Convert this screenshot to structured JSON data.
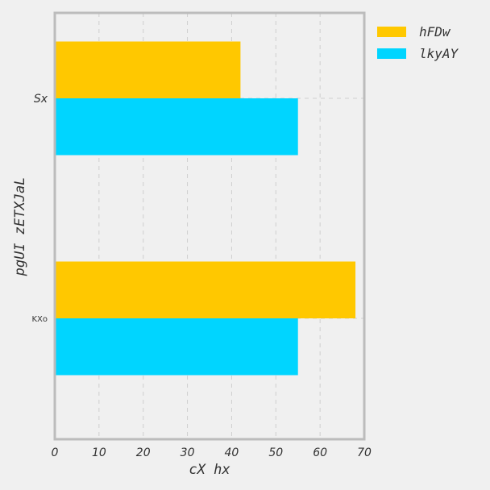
{
  "chart_data": {
    "type": "bar",
    "orientation": "horizontal",
    "categories": [
      "Sx",
      "KXo"
    ],
    "series": [
      {
        "name": "hFDw",
        "values": [
          42,
          68
        ],
        "color": "#ffc800"
      },
      {
        "name": "lkyAY",
        "values": [
          55,
          55
        ],
        "color": "#00d5ff"
      }
    ],
    "xlabel": "cX hx",
    "ylabel": "pgUI zETXJaL",
    "xlim": [
      0,
      70
    ],
    "xticks": [
      "0",
      "10",
      "20",
      "30",
      "40",
      "50",
      "60",
      "70"
    ],
    "grid": true,
    "legend_position": "outside-top-right"
  }
}
